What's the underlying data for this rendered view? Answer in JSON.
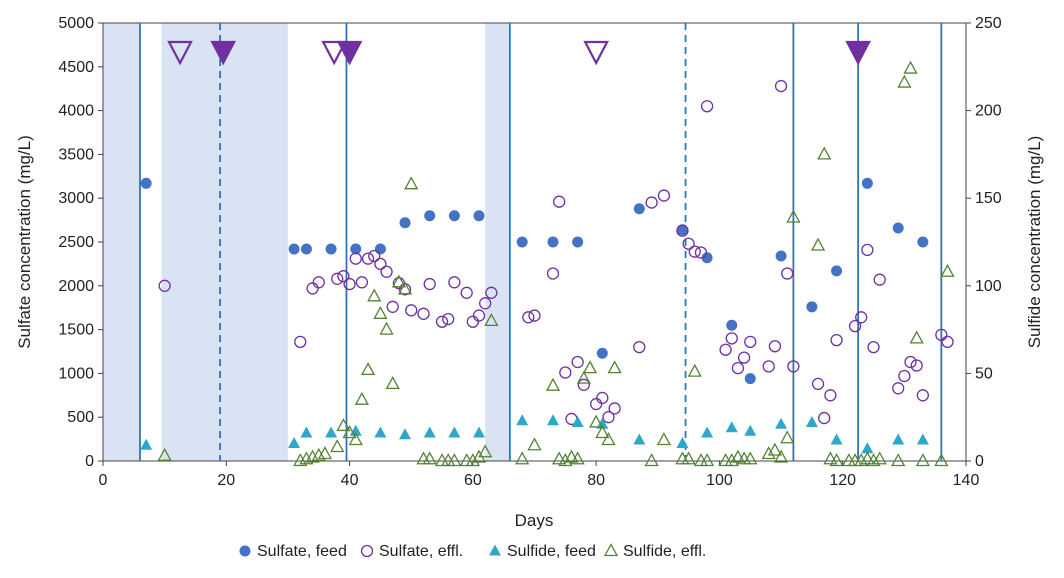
{
  "chart_data": {
    "type": "scatter",
    "title": "",
    "xlabel": "Days",
    "ylabel_left": "Sulfate concentration (mg/L)",
    "ylabel_right": "Sulfide concentration (mg/L)",
    "xlim": [
      0,
      140
    ],
    "ylim_left": [
      0,
      5000
    ],
    "ylim_right": [
      0,
      250
    ],
    "x_ticks": [
      0,
      20,
      40,
      60,
      80,
      100,
      120,
      140
    ],
    "y_ticks_left": [
      0,
      500,
      1000,
      1500,
      2000,
      2500,
      3000,
      3500,
      4000,
      4500,
      5000
    ],
    "y_ticks_right": [
      0,
      50,
      100,
      150,
      200,
      250
    ],
    "shaded_periods": [
      [
        0,
        6
      ],
      [
        9.5,
        30
      ],
      [
        62,
        66
      ]
    ],
    "solid_vlines": [
      6,
      39.5,
      66,
      112,
      122.5,
      136
    ],
    "dashed_vlines": [
      19,
      94.5
    ],
    "markers_open": [
      12.5,
      37.5,
      80
    ],
    "markers_filled": [
      19.5,
      40,
      122.5
    ],
    "series": [
      {
        "name": "Sulfate, feed",
        "axis": "left",
        "color": "#4472c4",
        "points": [
          [
            7,
            3170
          ],
          [
            31,
            2420
          ],
          [
            33,
            2420
          ],
          [
            37,
            2420
          ],
          [
            41,
            2420
          ],
          [
            45,
            2420
          ],
          [
            49,
            2720
          ],
          [
            53,
            2800
          ],
          [
            57,
            2800
          ],
          [
            61,
            2800
          ],
          [
            68,
            2500
          ],
          [
            73,
            2500
          ],
          [
            77,
            2500
          ],
          [
            81,
            1230
          ],
          [
            87,
            2880
          ],
          [
            94,
            2640
          ],
          [
            98,
            2320
          ],
          [
            102,
            1550
          ],
          [
            105,
            940
          ],
          [
            110,
            2340
          ],
          [
            115,
            1760
          ],
          [
            119,
            2170
          ],
          [
            124,
            3170
          ],
          [
            129,
            2660
          ],
          [
            133,
            2500
          ]
        ]
      },
      {
        "name": "Sulfate, effl.",
        "axis": "left",
        "color": "#7030a0",
        "points": [
          [
            10,
            2000
          ],
          [
            32,
            1360
          ],
          [
            34,
            1970
          ],
          [
            35,
            2040
          ],
          [
            38,
            2080
          ],
          [
            39,
            2110
          ],
          [
            40,
            2020
          ],
          [
            41,
            2310
          ],
          [
            42,
            2040
          ],
          [
            43,
            2310
          ],
          [
            44,
            2340
          ],
          [
            45,
            2250
          ],
          [
            46,
            2160
          ],
          [
            47,
            1760
          ],
          [
            48,
            2030
          ],
          [
            49,
            1960
          ],
          [
            50,
            1720
          ],
          [
            52,
            1680
          ],
          [
            53,
            2020
          ],
          [
            55,
            1590
          ],
          [
            56,
            1620
          ],
          [
            57,
            2040
          ],
          [
            59,
            1920
          ],
          [
            60,
            1590
          ],
          [
            61,
            1660
          ],
          [
            62,
            1800
          ],
          [
            63,
            1920
          ],
          [
            69,
            1640
          ],
          [
            70,
            1660
          ],
          [
            73,
            2140
          ],
          [
            74,
            2960
          ],
          [
            75,
            1010
          ],
          [
            76,
            480
          ],
          [
            77,
            1130
          ],
          [
            78,
            870
          ],
          [
            80,
            650
          ],
          [
            81,
            720
          ],
          [
            82,
            500
          ],
          [
            83,
            600
          ],
          [
            87,
            1300
          ],
          [
            89,
            2950
          ],
          [
            91,
            3030
          ],
          [
            94,
            2630
          ],
          [
            95,
            2480
          ],
          [
            96,
            2390
          ],
          [
            97,
            2380
          ],
          [
            98,
            4050
          ],
          [
            101,
            1270
          ],
          [
            102,
            1400
          ],
          [
            103,
            1060
          ],
          [
            104,
            1180
          ],
          [
            105,
            1360
          ],
          [
            108,
            1080
          ],
          [
            109,
            1310
          ],
          [
            110,
            4280
          ],
          [
            111,
            2140
          ],
          [
            112,
            1080
          ],
          [
            116,
            880
          ],
          [
            117,
            490
          ],
          [
            118,
            750
          ],
          [
            119,
            1380
          ],
          [
            122,
            1540
          ],
          [
            123,
            1640
          ],
          [
            124,
            2410
          ],
          [
            125,
            1300
          ],
          [
            126,
            2070
          ],
          [
            129,
            830
          ],
          [
            130,
            970
          ],
          [
            131,
            1130
          ],
          [
            132,
            1090
          ],
          [
            133,
            750
          ],
          [
            136,
            1440
          ],
          [
            137,
            1360
          ]
        ]
      },
      {
        "name": "Sulfide, feed",
        "axis": "right",
        "color": "#2ea8c8",
        "points": [
          [
            7,
            9
          ],
          [
            31,
            10
          ],
          [
            33,
            16
          ],
          [
            37,
            16
          ],
          [
            41,
            17
          ],
          [
            45,
            16
          ],
          [
            49,
            15
          ],
          [
            53,
            16
          ],
          [
            57,
            16
          ],
          [
            61,
            16
          ],
          [
            68,
            23
          ],
          [
            73,
            23
          ],
          [
            77,
            22
          ],
          [
            81,
            21
          ],
          [
            87,
            12
          ],
          [
            94,
            10
          ],
          [
            98,
            16
          ],
          [
            102,
            19
          ],
          [
            105,
            17
          ],
          [
            110,
            21
          ],
          [
            115,
            22
          ],
          [
            119,
            12
          ],
          [
            124,
            7
          ],
          [
            129,
            12
          ],
          [
            133,
            12
          ]
        ]
      },
      {
        "name": "Sulfide, effl.",
        "axis": "right",
        "color": "#548235",
        "points": [
          [
            10,
            3
          ],
          [
            32,
            0
          ],
          [
            33,
            1
          ],
          [
            34,
            2
          ],
          [
            35,
            3
          ],
          [
            36,
            4
          ],
          [
            38,
            8
          ],
          [
            39,
            20
          ],
          [
            40,
            16
          ],
          [
            41,
            12
          ],
          [
            42,
            35
          ],
          [
            43,
            52
          ],
          [
            44,
            94
          ],
          [
            45,
            84
          ],
          [
            46,
            75
          ],
          [
            47,
            44
          ],
          [
            48,
            102
          ],
          [
            49,
            98
          ],
          [
            50,
            158
          ],
          [
            52,
            1
          ],
          [
            53,
            1
          ],
          [
            55,
            0
          ],
          [
            56,
            0
          ],
          [
            57,
            0
          ],
          [
            59,
            0
          ],
          [
            60,
            0
          ],
          [
            61,
            2
          ],
          [
            62,
            5
          ],
          [
            63,
            80
          ],
          [
            68,
            1
          ],
          [
            70,
            9
          ],
          [
            73,
            43
          ],
          [
            74,
            1
          ],
          [
            75,
            0
          ],
          [
            76,
            2
          ],
          [
            77,
            1
          ],
          [
            78,
            47
          ],
          [
            79,
            53
          ],
          [
            80,
            22
          ],
          [
            81,
            16
          ],
          [
            82,
            12
          ],
          [
            83,
            53
          ],
          [
            89,
            0
          ],
          [
            91,
            12
          ],
          [
            94,
            1
          ],
          [
            95,
            1
          ],
          [
            96,
            51
          ],
          [
            97,
            0
          ],
          [
            98,
            0
          ],
          [
            101,
            0
          ],
          [
            102,
            0
          ],
          [
            103,
            2
          ],
          [
            104,
            1
          ],
          [
            105,
            1
          ],
          [
            108,
            4
          ],
          [
            109,
            6
          ],
          [
            110,
            2
          ],
          [
            111,
            13
          ],
          [
            112,
            139
          ],
          [
            116,
            123
          ],
          [
            117,
            175
          ],
          [
            118,
            1
          ],
          [
            119,
            0
          ],
          [
            121,
            0
          ],
          [
            122,
            0
          ],
          [
            123,
            0
          ],
          [
            124,
            1
          ],
          [
            125,
            0
          ],
          [
            126,
            1
          ],
          [
            129,
            0
          ],
          [
            130,
            216
          ],
          [
            131,
            224
          ],
          [
            132,
            70
          ],
          [
            133,
            0
          ],
          [
            136,
            0
          ],
          [
            137,
            108
          ]
        ]
      }
    ],
    "legend": {
      "placement": "bottom",
      "entries": [
        "Sulfate, feed",
        "Sulfate, effl.",
        "Sulfide, feed",
        "Sulfide, effl."
      ]
    }
  }
}
